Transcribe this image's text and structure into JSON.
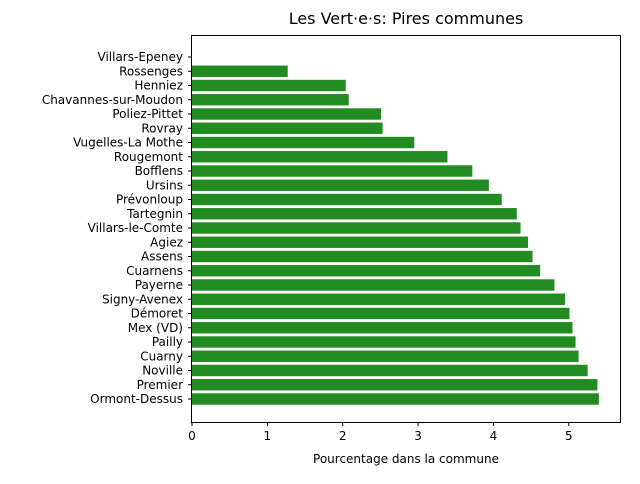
{
  "chart_data": {
    "type": "bar",
    "orientation": "horizontal",
    "title": "Les Vert·e·s: Pires communes",
    "xlabel": "Pourcentage dans la commune",
    "ylabel": "",
    "xlim": [
      0,
      5.68
    ],
    "xticks": [
      0,
      1,
      2,
      3,
      4,
      5
    ],
    "xtick_labels": [
      "0",
      "1",
      "2",
      "3",
      "4",
      "5"
    ],
    "grid": false,
    "legend": "none",
    "bar_color": "#228b22",
    "categories": [
      "Villars-Epeney",
      "Rossenges",
      "Henniez",
      "Chavannes-sur-Moudon",
      "Poliez-Pittet",
      "Rovray",
      "Vugelles-La Mothe",
      "Rougemont",
      "Bofflens",
      "Ursins",
      "Prévonloup",
      "Tartegnin",
      "Villars-le-Comte",
      "Agiez",
      "Assens",
      "Cuarnens",
      "Payerne",
      "Signy-Avenex",
      "Démoret",
      "Mex (VD)",
      "Pailly",
      "Cuarny",
      "Noville",
      "Premier",
      "Ormont-Dessus"
    ],
    "values": [
      0.0,
      1.27,
      2.04,
      2.08,
      2.51,
      2.53,
      2.95,
      3.39,
      3.72,
      3.94,
      4.11,
      4.31,
      4.36,
      4.46,
      4.52,
      4.62,
      4.81,
      4.95,
      5.01,
      5.05,
      5.09,
      5.13,
      5.25,
      5.38,
      5.4
    ]
  }
}
